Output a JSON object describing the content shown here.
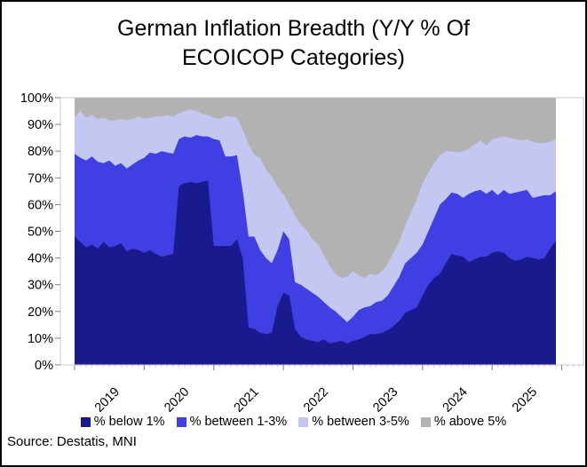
{
  "header": {
    "title_line1": "German Inflation Breadth (Y/Y % Of",
    "title_line2": "ECOICOP Categories)"
  },
  "source": "Source: Destatis, MNI",
  "axes": {
    "y_ticks": [
      "0%",
      "10%",
      "20%",
      "30%",
      "40%",
      "50%",
      "60%",
      "70%",
      "80%",
      "90%",
      "100%"
    ],
    "x_ticks": [
      "2019",
      "2020",
      "2021",
      "2022",
      "2023",
      "2024",
      "2025"
    ]
  },
  "colors": {
    "below1": "#1A1A8F",
    "between13": "#3F3FE3",
    "between35": "#C3C7F2",
    "above5": "#B2B2B2",
    "axis_line": "#C8C8C8",
    "major_tick": "#808080",
    "minor_tick": "#C8C8C8",
    "text": "#000000"
  },
  "chart_data": {
    "type": "area",
    "stacked": true,
    "stack_total": 100,
    "title": "German Inflation Breadth (Y/Y % Of ECOICOP Categories)",
    "x_range": "Jan 2019 - Dec 2025, monthly (84 points)",
    "ylim": [
      0,
      100
    ],
    "grid": false,
    "legend_position": "bottom",
    "x_tick_labels": [
      "2019",
      "2020",
      "2021",
      "2022",
      "2023",
      "2024",
      "2025"
    ],
    "series": [
      {
        "name": "% below 1%",
        "color": "#1A1A8F",
        "values": [
          48,
          46,
          44,
          45,
          43.5,
          46,
          44,
          44.5,
          45.5,
          42.5,
          43.5,
          43,
          42,
          43,
          41.5,
          40.5,
          41,
          41.5,
          67,
          68,
          68.5,
          68,
          68.5,
          69,
          44.5,
          44.5,
          44.5,
          44.5,
          47,
          40,
          14,
          13.5,
          12,
          11.5,
          12,
          22,
          27,
          26,
          13.5,
          10.5,
          9.5,
          9,
          8.5,
          9.5,
          8,
          8.5,
          9,
          8,
          9,
          9.5,
          10.5,
          11.5,
          11.5,
          12,
          13,
          14.5,
          16.5,
          19.5,
          20.5,
          21.5,
          26,
          30,
          32.5,
          34,
          38,
          41.5,
          41,
          40.5,
          38.5,
          39.5,
          40.5,
          40.5,
          42,
          42.5,
          42,
          40,
          39,
          39.5,
          40.5,
          40,
          39.5,
          40,
          43.5,
          46.5
        ]
      },
      {
        "name": "% between 1-3%",
        "color": "#3F3FE3",
        "values": [
          31,
          31.5,
          32.5,
          33,
          32.5,
          29.5,
          32.5,
          30,
          30,
          31,
          31.5,
          33.5,
          35.5,
          36.5,
          37.5,
          39.5,
          38.5,
          37.5,
          17.5,
          17.5,
          16.5,
          18,
          17,
          16.5,
          40,
          39.5,
          33.5,
          33.5,
          31.5,
          25,
          34,
          34.5,
          31,
          28.5,
          26,
          21,
          23,
          21,
          17.5,
          19.5,
          19,
          18,
          17,
          14,
          13.5,
          11.5,
          9,
          8,
          9,
          11,
          11,
          10.5,
          12,
          12,
          13,
          15,
          16.5,
          18.5,
          19.5,
          20.5,
          19,
          20,
          22.5,
          26,
          24,
          23,
          23,
          22,
          25.5,
          25.5,
          25,
          23.5,
          23.5,
          21,
          23.5,
          24,
          25.5,
          25.5,
          25,
          22.5,
          23.5,
          23.5,
          20,
          18.5
        ]
      },
      {
        "name": "% between 3-5%",
        "color": "#C3C7F2",
        "values": [
          14,
          17.5,
          16,
          15.5,
          16,
          17,
          15,
          17,
          16.5,
          18,
          17,
          16.5,
          14.5,
          13,
          14,
          13,
          14,
          14,
          9.5,
          9.5,
          10.5,
          9,
          8.5,
          8,
          8,
          8,
          15,
          15,
          14,
          23,
          34.5,
          30.5,
          34.5,
          33,
          32.5,
          23.5,
          14,
          13,
          25,
          22.5,
          22,
          20,
          19.5,
          17.5,
          15.5,
          14,
          14.5,
          17,
          17,
          13,
          11,
          12,
          10,
          11,
          12,
          12.5,
          13,
          14,
          17,
          20,
          23,
          22,
          20.5,
          18.5,
          18,
          15.5,
          15.5,
          17.5,
          17,
          17.5,
          18.5,
          18,
          19,
          21.5,
          20,
          21,
          20,
          19,
          19,
          21,
          20,
          19.5,
          20,
          19.5
        ]
      },
      {
        "name": "% above 5%",
        "color": "#B2B2B2",
        "values": [
          7,
          5,
          7.5,
          6.5,
          8,
          7.5,
          8.5,
          8.5,
          8,
          8.5,
          8,
          7,
          8,
          7.5,
          7,
          7,
          6.5,
          7,
          6,
          5,
          4.5,
          5,
          6,
          6.5,
          7.5,
          8,
          7,
          7,
          7.5,
          12,
          17.5,
          21.5,
          22.5,
          27,
          29.5,
          33.5,
          36,
          40,
          44,
          47.5,
          49.5,
          53,
          55,
          59,
          63,
          66,
          67.5,
          67,
          65,
          66.5,
          67.5,
          66,
          66.5,
          65,
          62,
          58,
          54,
          48,
          43,
          38,
          32,
          28,
          24.5,
          21.5,
          20,
          20,
          20.5,
          20,
          19,
          17.5,
          16,
          18,
          15.5,
          15,
          14.5,
          15,
          15.5,
          16,
          15.5,
          16.5,
          17,
          17,
          16.5,
          15.5
        ]
      }
    ]
  }
}
